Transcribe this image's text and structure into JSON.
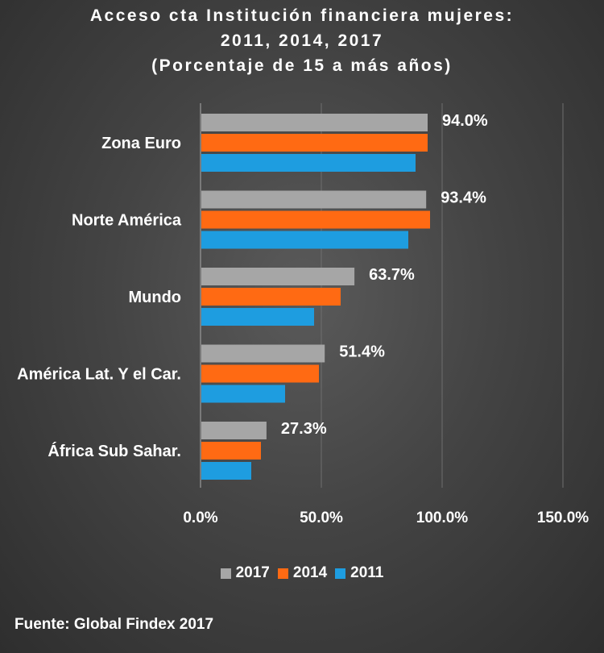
{
  "chart_data": {
    "type": "bar",
    "orientation": "horizontal",
    "title_lines": [
      "Acceso cta Institución financiera mujeres:",
      "2011, 2014, 2017",
      "(Porcentaje de 15 a más años)"
    ],
    "categories": [
      "Zona Euro",
      "Norte América",
      "Mundo",
      "América Lat. Y el Car.",
      "África Sub Sahar."
    ],
    "series": [
      {
        "name": "2017",
        "color": "#a6a6a6",
        "values": [
          94.0,
          93.4,
          63.7,
          51.4,
          27.3
        ]
      },
      {
        "name": "2014",
        "color": "#ff6a13",
        "values": [
          94,
          95,
          58,
          49,
          25
        ]
      },
      {
        "name": "2011",
        "color": "#1e9de0",
        "values": [
          89,
          86,
          47,
          35,
          21
        ]
      }
    ],
    "data_labels": [
      "94.0%",
      "93.4%",
      "63.7%",
      "51.4%",
      "27.3%"
    ],
    "xlim": [
      0,
      150
    ],
    "x_ticks": [
      "0.0%",
      "50.0%",
      "100.0%",
      "150.0%"
    ],
    "x_tick_values": [
      0,
      50,
      100,
      150
    ],
    "grid": true,
    "legend_position": "bottom"
  },
  "source": "Fuente: Global Findex 2017"
}
